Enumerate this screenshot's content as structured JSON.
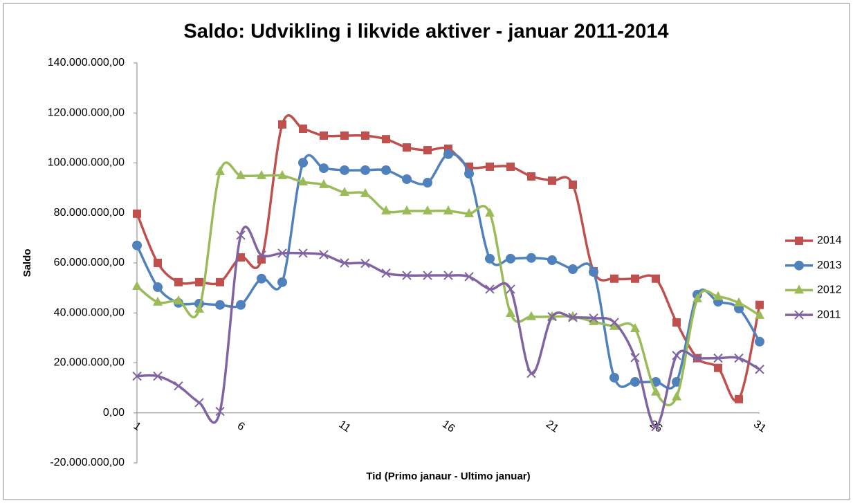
{
  "chart_data": {
    "type": "line",
    "title": "Saldo: Udvikling i likvide aktiver - januar 2011-2014",
    "x_label": "Tid (Primo janaur  - Ultimo januar)",
    "y_label": "Saldo",
    "categories": [
      "1",
      null,
      null,
      null,
      null,
      "6",
      null,
      null,
      null,
      null,
      "11",
      null,
      null,
      null,
      null,
      "16",
      null,
      null,
      null,
      null,
      "21",
      null,
      null,
      null,
      null,
      "26",
      null,
      null,
      null,
      null,
      "31"
    ],
    "ylim": [
      -20000000,
      140000000
    ],
    "yticks": [
      {
        "value": -20000000,
        "label": "-20.000.000,00"
      },
      {
        "value": 0,
        "label": "0,00"
      },
      {
        "value": 20000000,
        "label": "20.000.000,00"
      },
      {
        "value": 40000000,
        "label": "40.000.000,00"
      },
      {
        "value": 60000000,
        "label": "60.000.000,00"
      },
      {
        "value": 80000000,
        "label": "80.000.000,00"
      },
      {
        "value": 100000000,
        "label": "100.000.000,00"
      },
      {
        "value": 120000000,
        "label": "120.000.000,00"
      },
      {
        "value": 140000000,
        "label": "140.000.000,00"
      }
    ],
    "grid": false,
    "smooth": true,
    "legend": "right",
    "series": [
      {
        "name": "2014",
        "color": "#c0504d",
        "values": [
          79700000,
          60000000,
          52300000,
          52300000,
          52300000,
          62200000,
          61400000,
          115400000,
          113700000,
          110900000,
          110900000,
          110900000,
          109500000,
          106200000,
          105100000,
          105700000,
          98500000,
          98500000,
          98500000,
          94600000,
          92900000,
          91300000,
          56700000,
          53700000,
          53700000,
          53700000,
          36200000,
          21900000,
          18000000,
          5500000,
          43200000
        ]
      },
      {
        "name": "2013",
        "color": "#4f81bd",
        "values": [
          67000000,
          50300000,
          44000000,
          43700000,
          43200000,
          43200000,
          53700000,
          52300000,
          100100000,
          97900000,
          97100000,
          97100000,
          97100000,
          93500000,
          92100000,
          103500000,
          95700000,
          61700000,
          61700000,
          62000000,
          61100000,
          57500000,
          56400000,
          14100000,
          12400000,
          12400000,
          12400000,
          47300000,
          44500000,
          41800000,
          28500000
        ]
      },
      {
        "name": "2012",
        "color": "#9bbb59",
        "values": [
          50600000,
          44300000,
          44800000,
          41500000,
          96500000,
          94900000,
          94900000,
          94900000,
          92400000,
          91300000,
          88200000,
          87700000,
          80800000,
          80800000,
          80800000,
          80800000,
          79700000,
          79900000,
          39800000,
          38500000,
          38500000,
          38500000,
          36500000,
          34600000,
          33700000,
          8300000,
          6400000,
          45600000,
          46500000,
          44000000,
          39000000
        ]
      },
      {
        "name": "2011",
        "color": "#8064a2",
        "values": [
          14700000,
          14700000,
          10800000,
          4100000,
          600000,
          71100000,
          63100000,
          63900000,
          63900000,
          63300000,
          60000000,
          59800000,
          55900000,
          55000000,
          55000000,
          55000000,
          54500000,
          49500000,
          49500000,
          15800000,
          38500000,
          38200000,
          37900000,
          36200000,
          22100000,
          -5500000,
          23000000,
          21900000,
          21900000,
          21900000,
          17400000
        ]
      }
    ]
  }
}
